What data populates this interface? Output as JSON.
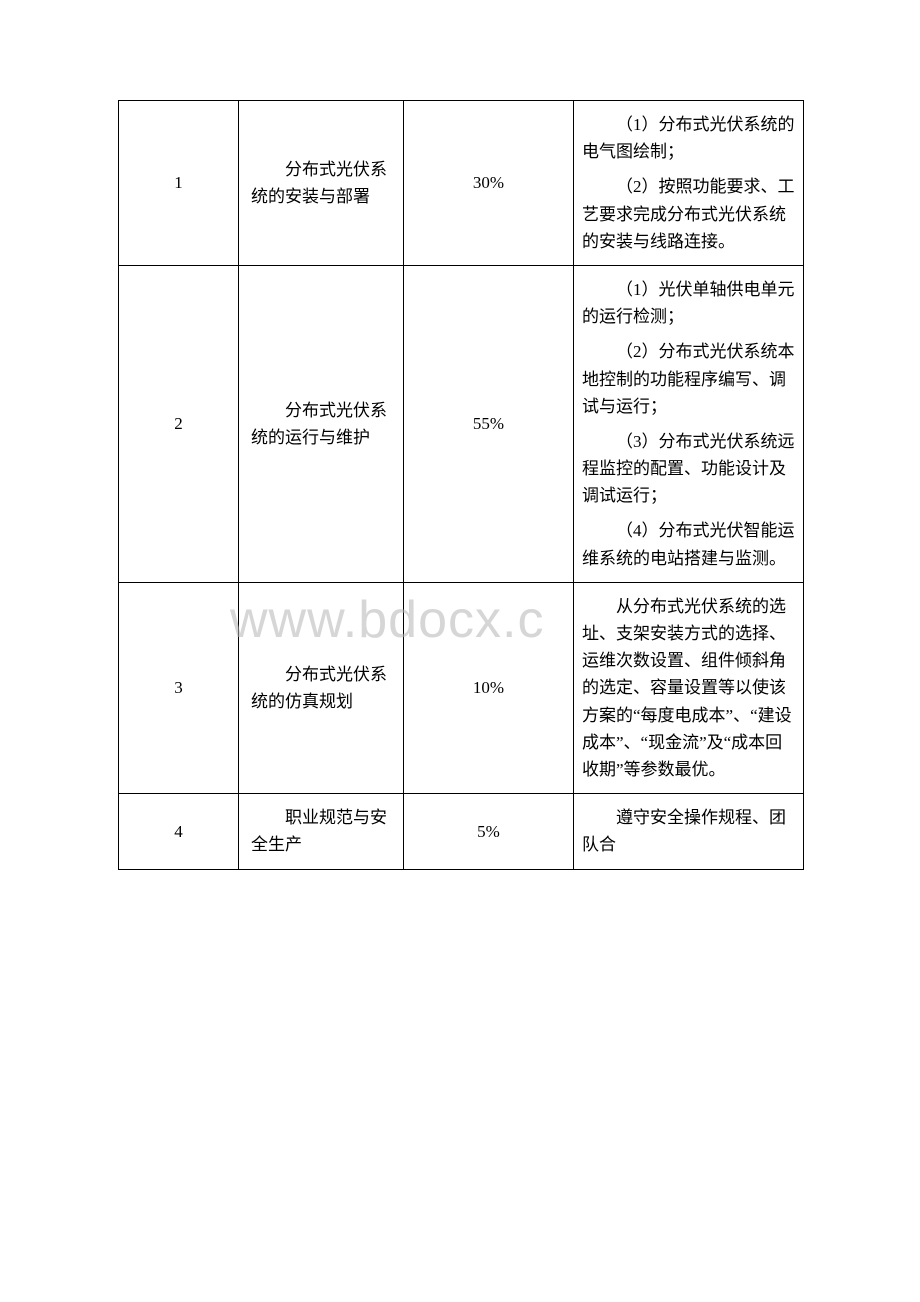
{
  "watermark": "www.bdocx.c",
  "table": {
    "border_color": "#000000",
    "bg_color": "#ffffff",
    "text_color": "#000000",
    "font_size_pt": 13,
    "columns": {
      "num_width": 120,
      "name_width": 165,
      "pct_width": 170,
      "detail_width": 230
    },
    "rows": [
      {
        "num": "1",
        "name": "分布式光伏系统的安装与部署",
        "percent": "30%",
        "detail_items": [
          "（1）分布式光伏系统的电气图绘制；",
          "（2）按照功能要求、工艺要求完成分布式光伏系统的安装与线路连接。"
        ]
      },
      {
        "num": "2",
        "name": "分布式光伏系统的运行与维护",
        "percent": "55%",
        "detail_items": [
          "（1）光伏单轴供电单元的运行检测；",
          "（2）分布式光伏系统本地控制的功能程序编写、调试与运行；",
          "（3）分布式光伏系统远程监控的配置、功能设计及调试运行；",
          "（4）分布式光伏智能运维系统的电站搭建与监测。"
        ]
      },
      {
        "num": "3",
        "name": "分布式光伏系统的仿真规划",
        "percent": "10%",
        "detail_items": [
          "从分布式光伏系统的选址、支架安装方式的选择、运维次数设置、组件倾斜角的选定、容量设置等以使该方案的“每度电成本”、“建设成本”、“现金流”及“成本回收期”等参数最优。"
        ]
      },
      {
        "num": "4",
        "name": "职业规范与安全生产",
        "percent": "5%",
        "detail_items": [
          "遵守安全操作规程、团队合"
        ]
      }
    ]
  }
}
